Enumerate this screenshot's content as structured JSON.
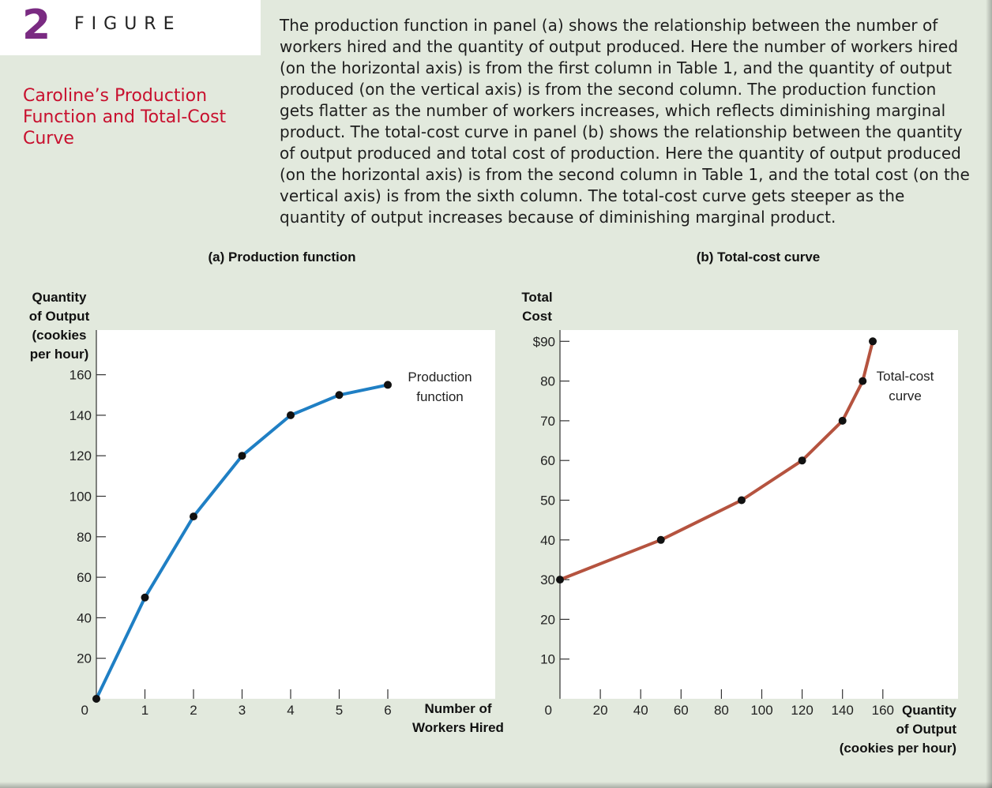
{
  "figure": {
    "number": "2",
    "word": "FIGURE",
    "title": "Caroline’s Production Function and Total-Cost Curve",
    "caption": "The production function in panel (a) shows the relationship between the number of workers hired and the quantity of output produced. Here the number of workers hired (on the horizontal axis) is from the first column in Table 1, and the quantity of output produced (on the vertical axis) is from the second column. The production function gets flatter as the number of workers increases, which reflects diminishing marginal product. The total-cost curve in panel (b) shows the relationship between the quantity of output produced and total cost of production. Here the quantity of output produced (on the horizontal axis) is from the second column in Table 1, and the total cost (on the vertical axis) is from the sixth column. The total-cost curve gets steeper as the quantity of output increases because of diminishing marginal product."
  },
  "colors": {
    "production_line": "#1f7fc4",
    "cost_line": "#b5533f",
    "figure_number": "#7a2b82",
    "title": "#c8102e"
  },
  "chart_data": [
    {
      "type": "line",
      "panel_title": "(a) Production function",
      "ylabel_lines": [
        "Quantity",
        "of Output",
        "(cookies",
        "per hour)"
      ],
      "xlabel_lines": [
        "Number of",
        "Workers Hired"
      ],
      "series": [
        {
          "name": "Production function",
          "name_lines": [
            "Production",
            "function"
          ],
          "x": [
            0,
            1,
            2,
            3,
            4,
            5,
            6
          ],
          "y": [
            0,
            50,
            90,
            120,
            140,
            150,
            155
          ]
        }
      ],
      "xlim": [
        0,
        6.5
      ],
      "ylim": [
        0,
        160
      ],
      "xticks": [
        "0",
        "1",
        "2",
        "3",
        "4",
        "5",
        "6"
      ],
      "yticks": [
        "20",
        "40",
        "60",
        "80",
        "100",
        "120",
        "140",
        "160"
      ],
      "ytick_values": [
        20,
        40,
        60,
        80,
        100,
        120,
        140,
        160
      ],
      "xtick_values": [
        1,
        2,
        3,
        4,
        5,
        6
      ]
    },
    {
      "type": "line",
      "panel_title": "(b) Total-cost curve",
      "ylabel_lines": [
        "Total",
        "Cost"
      ],
      "xlabel_lines": [
        "Quantity",
        "of Output",
        "(cookies per hour)"
      ],
      "series": [
        {
          "name": "Total-cost curve",
          "name_lines": [
            "Total-cost",
            "curve"
          ],
          "x": [
            0,
            50,
            90,
            120,
            140,
            150,
            155
          ],
          "y": [
            30,
            40,
            50,
            60,
            70,
            80,
            90
          ]
        }
      ],
      "xlim": [
        0,
        165
      ],
      "ylim": [
        0,
        90
      ],
      "xticks": [
        "0",
        "20",
        "40",
        "60",
        "80",
        "100",
        "120",
        "140",
        "160"
      ],
      "yticks": [
        "10",
        "20",
        "30",
        "40",
        "50",
        "60",
        "70",
        "80",
        "$90"
      ],
      "ytick_values": [
        10,
        20,
        30,
        40,
        50,
        60,
        70,
        80,
        90
      ],
      "xtick_values": [
        20,
        40,
        60,
        80,
        100,
        120,
        140,
        160
      ]
    }
  ]
}
